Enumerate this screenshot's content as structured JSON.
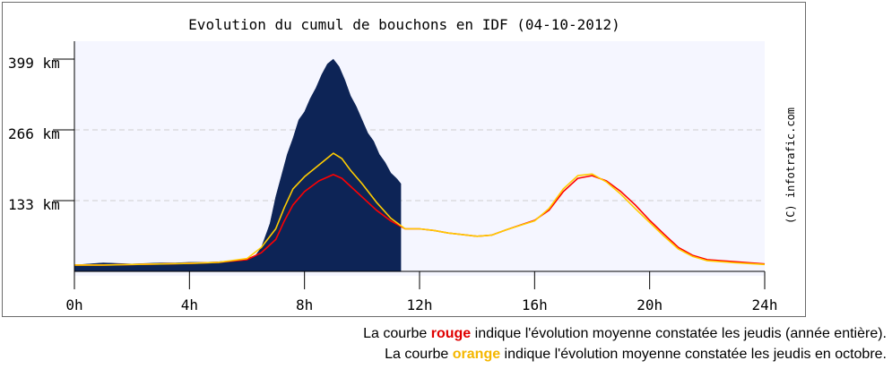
{
  "chart_data": {
    "type": "area",
    "title": "Evolution du cumul de bouchons en IDF (04-10-2012)",
    "copyright": "(C) infotrafic.com",
    "xlabel": "",
    "ylabel": "",
    "x_ticks": [
      "0h",
      "4h",
      "8h",
      "12h",
      "16h",
      "20h",
      "24h"
    ],
    "xlim": [
      0,
      24
    ],
    "y_ticks": [
      {
        "value": 133,
        "label": "133 km"
      },
      {
        "value": 266,
        "label": "266 km"
      },
      {
        "value": 399,
        "label": "399 km"
      }
    ],
    "ylim": [
      0,
      399
    ],
    "grid": "horizontal dashed",
    "series": [
      {
        "role": "area",
        "color": "#0d2456",
        "points": [
          [
            0,
            12
          ],
          [
            0.5,
            14
          ],
          [
            1,
            16
          ],
          [
            1.5,
            15
          ],
          [
            2,
            14
          ],
          [
            2.5,
            15
          ],
          [
            3,
            16
          ],
          [
            3.5,
            16
          ],
          [
            4,
            17
          ],
          [
            4.5,
            17
          ],
          [
            5,
            18
          ],
          [
            5.5,
            20
          ],
          [
            6,
            24
          ],
          [
            6.3,
            30
          ],
          [
            6.5,
            45
          ],
          [
            6.7,
            75
          ],
          [
            6.8,
            90
          ],
          [
            7,
            140
          ],
          [
            7.2,
            180
          ],
          [
            7.4,
            220
          ],
          [
            7.6,
            250
          ],
          [
            7.8,
            285
          ],
          [
            8,
            300
          ],
          [
            8.2,
            325
          ],
          [
            8.4,
            345
          ],
          [
            8.6,
            370
          ],
          [
            8.8,
            390
          ],
          [
            9,
            399
          ],
          [
            9.2,
            385
          ],
          [
            9.4,
            360
          ],
          [
            9.6,
            330
          ],
          [
            9.8,
            310
          ],
          [
            10,
            285
          ],
          [
            10.2,
            260
          ],
          [
            10.4,
            245
          ],
          [
            10.6,
            220
          ],
          [
            10.8,
            205
          ],
          [
            11,
            185
          ],
          [
            11.2,
            175
          ],
          [
            11.35,
            165
          ]
        ]
      },
      {
        "role": "line",
        "color": "#ff0000",
        "points": [
          [
            0,
            12
          ],
          [
            1,
            12
          ],
          [
            2,
            13
          ],
          [
            3,
            14
          ],
          [
            4,
            15
          ],
          [
            5,
            17
          ],
          [
            6,
            22
          ],
          [
            6.5,
            35
          ],
          [
            7,
            60
          ],
          [
            7.3,
            95
          ],
          [
            7.6,
            125
          ],
          [
            8,
            150
          ],
          [
            8.5,
            170
          ],
          [
            9,
            182
          ],
          [
            9.3,
            175
          ],
          [
            9.6,
            160
          ],
          [
            10,
            140
          ],
          [
            10.5,
            115
          ],
          [
            11,
            95
          ],
          [
            11.5,
            80
          ],
          [
            12,
            80
          ],
          [
            12.5,
            77
          ],
          [
            13,
            72
          ],
          [
            14,
            66
          ],
          [
            14.5,
            68
          ],
          [
            15,
            78
          ],
          [
            16,
            96
          ],
          [
            16.5,
            115
          ],
          [
            17,
            150
          ],
          [
            17.5,
            175
          ],
          [
            18,
            180
          ],
          [
            18.5,
            170
          ],
          [
            19,
            150
          ],
          [
            19.5,
            125
          ],
          [
            20,
            96
          ],
          [
            20.5,
            70
          ],
          [
            21,
            45
          ],
          [
            21.5,
            30
          ],
          [
            22,
            22
          ],
          [
            23,
            18
          ],
          [
            24,
            14
          ]
        ]
      },
      {
        "role": "line",
        "color": "#ffcc00",
        "points": [
          [
            0,
            12
          ],
          [
            1,
            12
          ],
          [
            2,
            13
          ],
          [
            3,
            14
          ],
          [
            4,
            15
          ],
          [
            5,
            17
          ],
          [
            6,
            24
          ],
          [
            6.5,
            45
          ],
          [
            7,
            80
          ],
          [
            7.3,
            120
          ],
          [
            7.6,
            155
          ],
          [
            8,
            178
          ],
          [
            8.5,
            200
          ],
          [
            9,
            222
          ],
          [
            9.3,
            212
          ],
          [
            9.6,
            190
          ],
          [
            10,
            165
          ],
          [
            10.5,
            130
          ],
          [
            11,
            100
          ],
          [
            11.5,
            80
          ],
          [
            12,
            80
          ],
          [
            12.5,
            77
          ],
          [
            13,
            72
          ],
          [
            14,
            66
          ],
          [
            14.5,
            68
          ],
          [
            15,
            78
          ],
          [
            16,
            95
          ],
          [
            16.5,
            118
          ],
          [
            17,
            155
          ],
          [
            17.5,
            180
          ],
          [
            18,
            183
          ],
          [
            18.5,
            168
          ],
          [
            19,
            145
          ],
          [
            19.5,
            118
          ],
          [
            20,
            92
          ],
          [
            20.5,
            66
          ],
          [
            21,
            42
          ],
          [
            21.5,
            28
          ],
          [
            22,
            20
          ],
          [
            23,
            16
          ],
          [
            24,
            13
          ]
        ]
      }
    ]
  },
  "captions": [
    {
      "prefix": "La courbe ",
      "keyword": "rouge",
      "keyword_color": "#e00000",
      "suffix": " indique l'évolution moyenne constatée les jeudis (année entière)."
    },
    {
      "prefix": "La courbe ",
      "keyword": "orange",
      "keyword_color": "#f5b700",
      "suffix": " indique l'évolution moyenne constatée les jeudis en octobre."
    }
  ]
}
